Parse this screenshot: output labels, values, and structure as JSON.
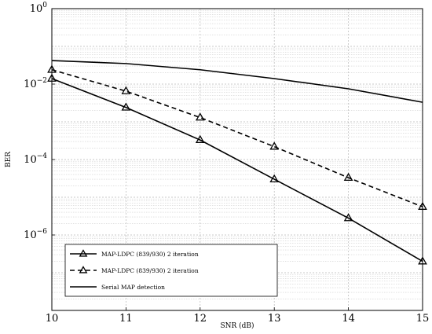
{
  "chart_data": {
    "type": "line",
    "xlabel": "SNR (dB)",
    "ylabel": "BER",
    "x_ticks": [
      "10",
      "11",
      "12",
      "13",
      "14",
      "15"
    ],
    "xlim": [
      10,
      15
    ],
    "ylim": [
      1e-08,
      1
    ],
    "y_scale": "log",
    "y_ticks": [
      {
        "base": "10",
        "exp": "0",
        "value": 1
      },
      {
        "base": "10",
        "exp": "−2",
        "value": 0.01
      },
      {
        "base": "10",
        "exp": "−4",
        "value": 0.0001
      },
      {
        "base": "10",
        "exp": "−6",
        "value": 1e-06
      }
    ],
    "grid": true,
    "legend_position": "bottom-left",
    "series": [
      {
        "name": "MAP-LDPC (839/930) 2 iteration",
        "style": "solid",
        "marker": "triangle",
        "color": "#000000",
        "x": [
          10,
          11,
          12,
          13,
          14,
          15
        ],
        "y": [
          0.014,
          0.0024,
          0.00033,
          3e-05,
          2.8e-06,
          2e-07
        ]
      },
      {
        "name": "MAP-LDPC (839/930) 2 iteration",
        "style": "dashed",
        "marker": "triangle",
        "color": "#000000",
        "x": [
          10,
          11,
          12,
          13,
          14,
          15
        ],
        "y": [
          0.024,
          0.0065,
          0.0013,
          0.00022,
          3.3e-05,
          5.6e-06
        ]
      },
      {
        "name": "Serial MAP detection",
        "style": "solid",
        "marker": "none",
        "color": "#000000",
        "x": [
          10,
          11,
          12,
          13,
          14,
          15
        ],
        "y": [
          0.042,
          0.035,
          0.024,
          0.014,
          0.0075,
          0.0033
        ]
      }
    ]
  }
}
